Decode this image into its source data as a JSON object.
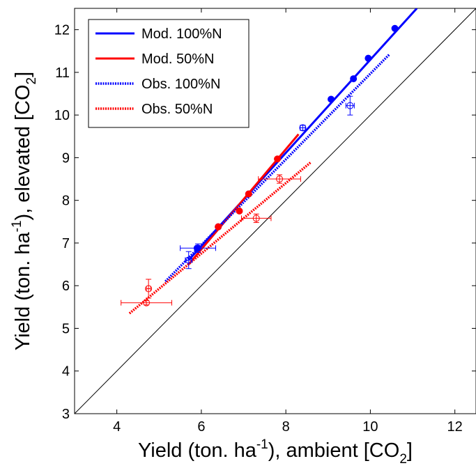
{
  "chart_data": {
    "type": "scatter",
    "title": "",
    "xlabel": {
      "main": "Yield (ton. ha",
      "sup": "-1",
      "mid": "), ambient [CO",
      "sub": "2",
      "end": "]"
    },
    "ylabel": {
      "main": "Yield (ton. ha",
      "sup": "-1",
      "mid": "), elevated [CO",
      "sub": "2",
      "end": "]"
    },
    "xlim": [
      3,
      12.5
    ],
    "ylim": [
      3,
      12.5
    ],
    "xticks": [
      "4",
      "6",
      "8",
      "10",
      "12"
    ],
    "yticks": [
      "3",
      "4",
      "5",
      "6",
      "7",
      "8",
      "9",
      "10",
      "11",
      "12"
    ],
    "grid": false,
    "legend_position": "top-left",
    "reference_line": {
      "x": [
        3,
        12.5
      ],
      "y": [
        3,
        12.5
      ],
      "color": "#000000"
    },
    "series": [
      {
        "name": "Mod. 100%N",
        "kind": "model",
        "color": "#0000ff",
        "line_style": "solid",
        "line_x": [
          5.7,
          11.1
        ],
        "line_y": [
          6.6,
          12.5
        ],
        "points": [
          {
            "x": 5.9,
            "y": 6.88
          },
          {
            "x": 6.4,
            "y": 7.38
          },
          {
            "x": 7.12,
            "y": 8.15
          },
          {
            "x": 9.07,
            "y": 10.37
          },
          {
            "x": 9.6,
            "y": 10.85
          },
          {
            "x": 9.95,
            "y": 11.33
          },
          {
            "x": 10.58,
            "y": 12.03
          }
        ]
      },
      {
        "name": "Mod. 50%N",
        "kind": "model",
        "color": "#ff0000",
        "line_style": "solid",
        "line_x": [
          5.7,
          8.3
        ],
        "line_y": [
          6.5,
          9.55
        ],
        "points": [
          {
            "x": 6.4,
            "y": 7.38
          },
          {
            "x": 6.9,
            "y": 7.75
          },
          {
            "x": 7.12,
            "y": 8.15
          },
          {
            "x": 7.8,
            "y": 8.97
          }
        ]
      },
      {
        "name": "Obs. 100%N",
        "kind": "observed",
        "color": "#0000ff",
        "line_style": "dotted",
        "line_x": [
          5.15,
          10.45
        ],
        "line_y": [
          6.1,
          11.42
        ],
        "points": [
          {
            "x": 5.7,
            "y": 6.6,
            "xerr": 0.08,
            "yerr": 0.2
          },
          {
            "x": 5.92,
            "y": 6.88,
            "xerr": 0.42,
            "yerr": 0.1
          },
          {
            "x": 8.4,
            "y": 9.7,
            "xerr": 0.06,
            "yerr": 0.06
          },
          {
            "x": 9.52,
            "y": 10.22,
            "xerr": 0.1,
            "yerr": 0.22
          }
        ]
      },
      {
        "name": "Obs. 50%N",
        "kind": "observed",
        "color": "#ff0000",
        "line_style": "dotted",
        "line_x": [
          4.3,
          8.6
        ],
        "line_y": [
          5.35,
          8.9
        ],
        "points": [
          {
            "x": 4.7,
            "y": 5.6,
            "xerr": 0.6,
            "yerr": 0.05
          },
          {
            "x": 4.75,
            "y": 5.93,
            "xerr": 0.05,
            "yerr": 0.22
          },
          {
            "x": 7.3,
            "y": 7.58,
            "xerr": 0.35,
            "yerr": 0.1
          },
          {
            "x": 7.85,
            "y": 8.5,
            "xerr": 0.5,
            "yerr": 0.1
          }
        ]
      }
    ]
  }
}
